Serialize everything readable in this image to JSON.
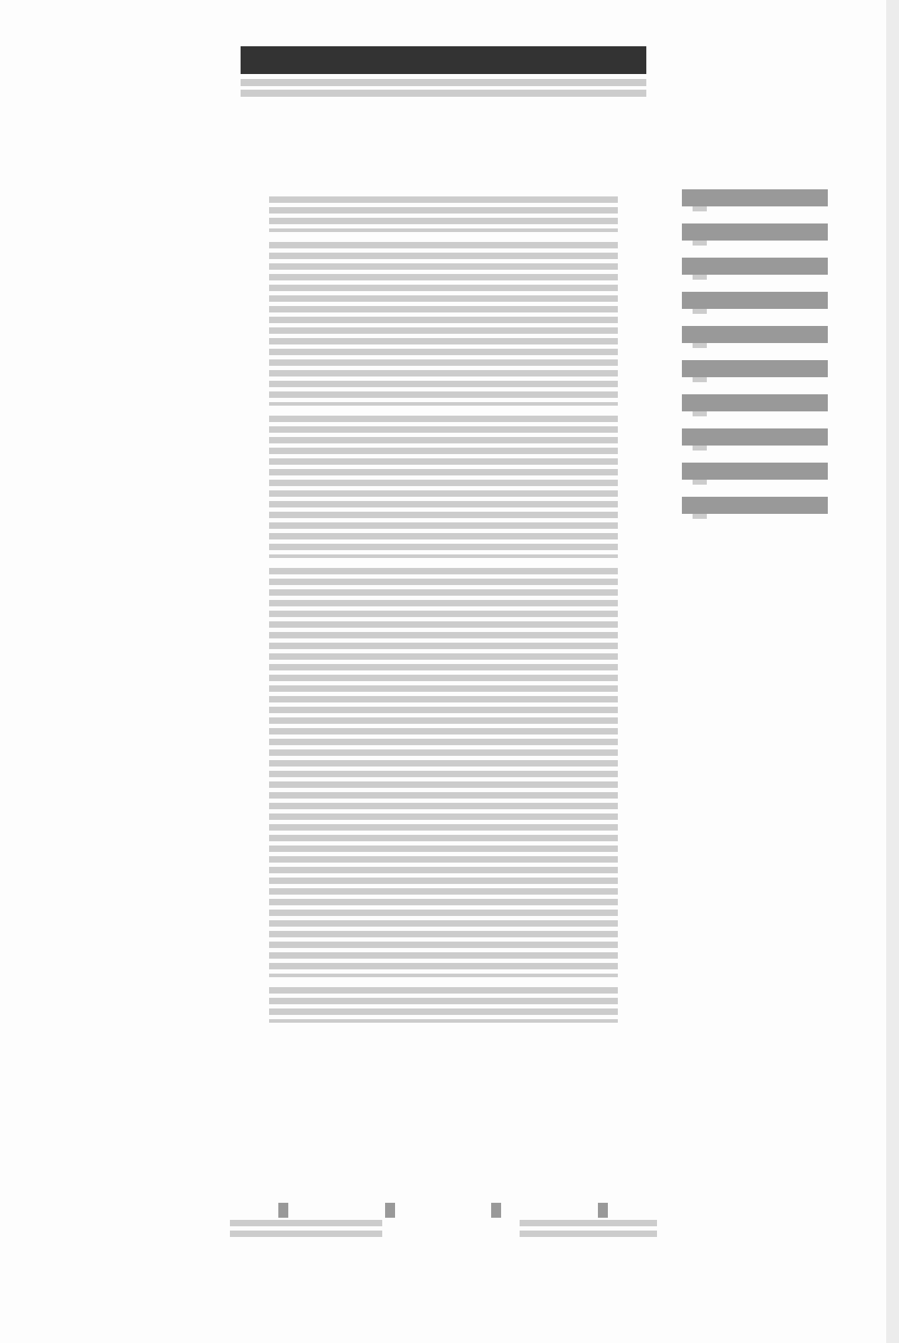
{
  "header": {
    "title": "",
    "subtitle_lines": 2
  },
  "article": {
    "paragraph_line_counts": [
      4,
      16,
      14,
      39,
      4
    ]
  },
  "sidebar": {
    "items": [
      {
        "label": ""
      },
      {
        "label": ""
      },
      {
        "label": ""
      },
      {
        "label": ""
      },
      {
        "label": ""
      },
      {
        "label": ""
      },
      {
        "label": ""
      },
      {
        "label": ""
      },
      {
        "label": ""
      },
      {
        "label": ""
      }
    ]
  },
  "footer": {
    "left_block": "",
    "right_block": ""
  },
  "colors": {
    "page_background": "#fdfdfd",
    "title_bar": "#333333",
    "text_placeholder": "#cccccc",
    "link_placeholder": "#999999",
    "scrollbar": "#ececec"
  }
}
